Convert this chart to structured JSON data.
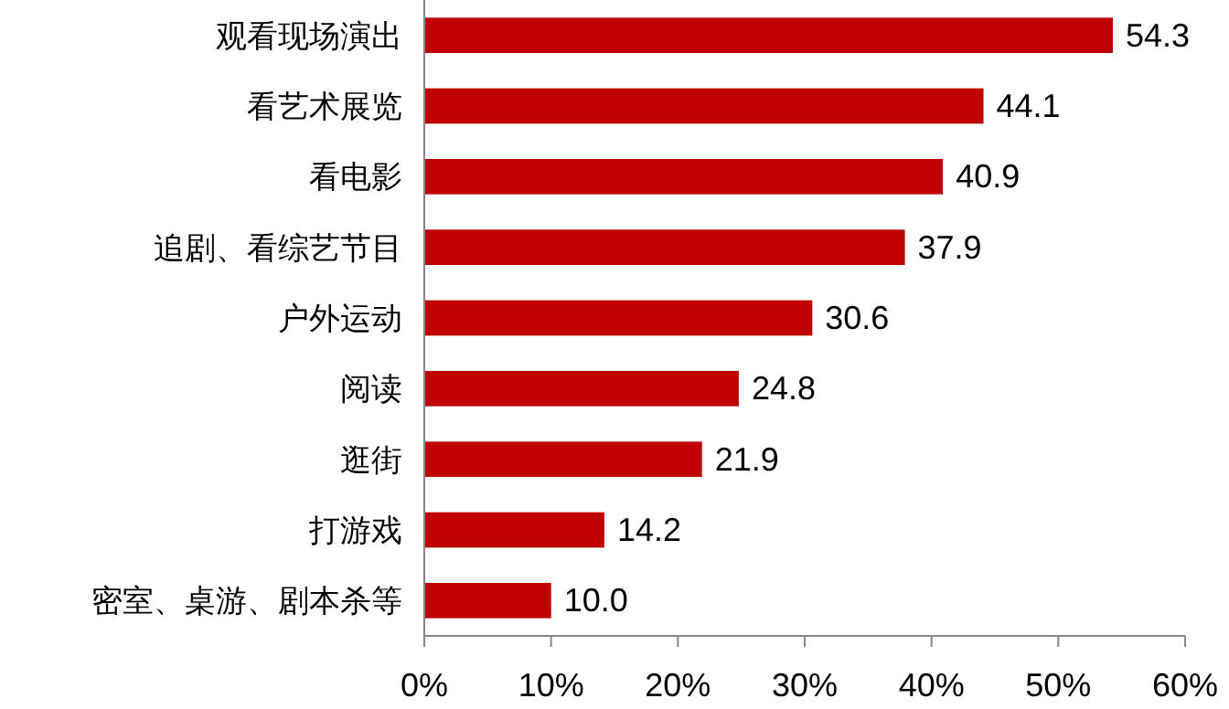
{
  "chart_data": {
    "type": "bar",
    "orientation": "horizontal",
    "categories": [
      "观看现场演出",
      "看艺术展览",
      "看电影",
      "追剧、看综艺节目",
      "户外运动",
      "阅读",
      "逛街",
      "打游戏",
      "密室、桌游、剧本杀等"
    ],
    "values": [
      54.3,
      44.1,
      40.9,
      37.9,
      30.6,
      24.8,
      21.9,
      14.2,
      10.0
    ],
    "value_labels": [
      "54.3",
      "44.1",
      "40.9",
      "37.9",
      "30.6",
      "24.8",
      "21.9",
      "14.2",
      "10.0"
    ],
    "color": "#c00000",
    "xlim": [
      0,
      60
    ],
    "xticks": [
      {
        "value": 0,
        "label": "0%"
      },
      {
        "value": 10,
        "label": "10%"
      },
      {
        "value": 20,
        "label": "20%"
      },
      {
        "value": 30,
        "label": "30%"
      },
      {
        "value": 40,
        "label": "40%"
      },
      {
        "value": 50,
        "label": "50%"
      },
      {
        "value": 60,
        "label": "60%"
      }
    ],
    "grid": false
  }
}
